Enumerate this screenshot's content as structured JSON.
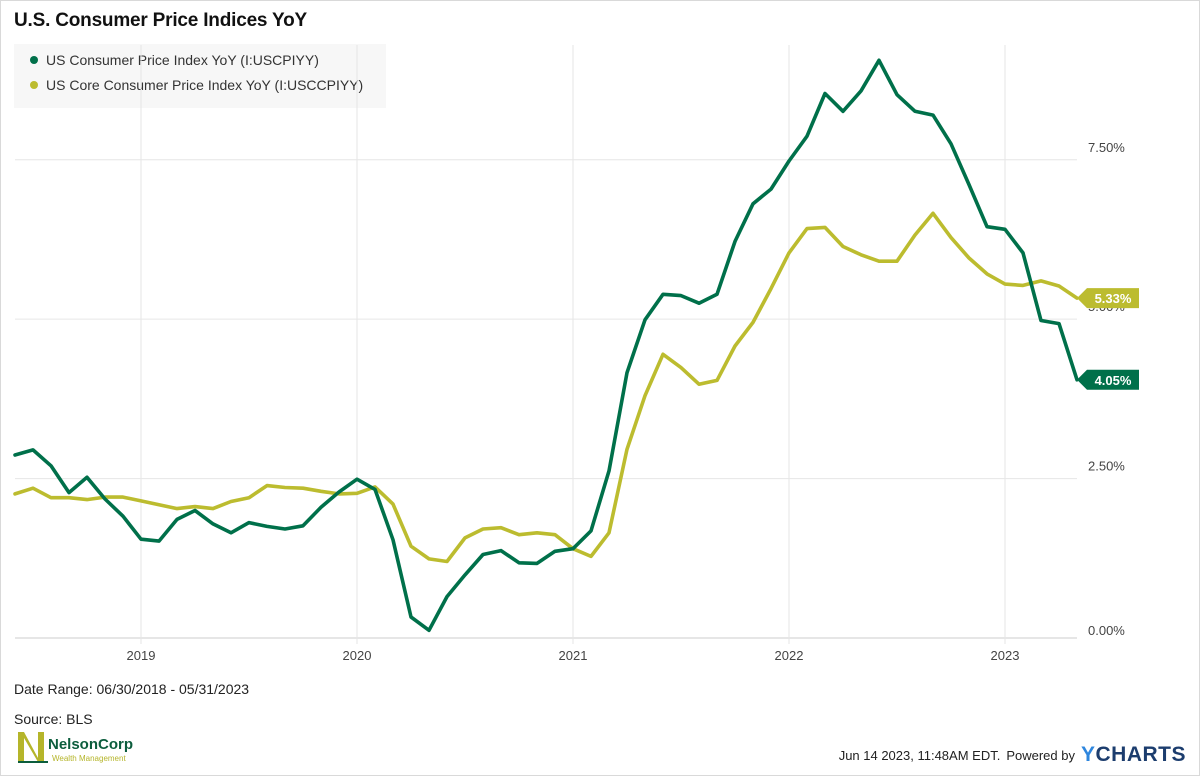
{
  "title": "U.S. Consumer Price Indices YoY",
  "legend": [
    {
      "label": "US Consumer Price Index YoY (I:USCPIYY)",
      "color": "#00704a"
    },
    {
      "label": "US Core Consumer Price Index YoY (I:USCCPIYY)",
      "color": "#bcbc2f"
    }
  ],
  "footer": {
    "date_range": "Date Range: 06/30/2018 - 05/31/2023",
    "source": "Source: BLS",
    "timestamp": "Jun 14 2023, 11:48AM EDT.",
    "powered_by": "Powered by",
    "brand_y": "Y",
    "brand_rest": "CHARTS"
  },
  "logo": {
    "name": "NelsonCorp",
    "tagline": "Wealth Management"
  },
  "chart_data": {
    "type": "line",
    "title": "U.S. Consumer Price Indices YoY",
    "x_axis": {
      "ticks": [
        "2019",
        "2020",
        "2021",
        "2022",
        "2023"
      ],
      "range": [
        "2018-06",
        "2023-05"
      ]
    },
    "y_axis": {
      "ticks": [
        "0.00%",
        "2.50%",
        "5.00%",
        "7.50%"
      ],
      "range": [
        0,
        9.3
      ],
      "position": "right"
    },
    "grid": true,
    "legend_position": "top-left",
    "x": [
      "2018-06",
      "2018-07",
      "2018-08",
      "2018-09",
      "2018-10",
      "2018-11",
      "2018-12",
      "2019-01",
      "2019-02",
      "2019-03",
      "2019-04",
      "2019-05",
      "2019-06",
      "2019-07",
      "2019-08",
      "2019-09",
      "2019-10",
      "2019-11",
      "2019-12",
      "2020-01",
      "2020-02",
      "2020-03",
      "2020-04",
      "2020-05",
      "2020-06",
      "2020-07",
      "2020-08",
      "2020-09",
      "2020-10",
      "2020-11",
      "2020-12",
      "2021-01",
      "2021-02",
      "2021-03",
      "2021-04",
      "2021-05",
      "2021-06",
      "2021-07",
      "2021-08",
      "2021-09",
      "2021-10",
      "2021-11",
      "2021-12",
      "2022-01",
      "2022-02",
      "2022-03",
      "2022-04",
      "2022-05",
      "2022-06",
      "2022-07",
      "2022-08",
      "2022-09",
      "2022-10",
      "2022-11",
      "2022-12",
      "2023-01",
      "2023-02",
      "2023-03",
      "2023-04",
      "2023-05"
    ],
    "series": [
      {
        "name": "US Consumer Price Index YoY (I:USCPIYY)",
        "color": "#00704a",
        "last_label": "4.05%",
        "values": [
          2.87,
          2.95,
          2.7,
          2.28,
          2.52,
          2.18,
          1.91,
          1.55,
          1.52,
          1.86,
          2.0,
          1.79,
          1.65,
          1.81,
          1.75,
          1.71,
          1.76,
          2.05,
          2.29,
          2.49,
          2.33,
          1.54,
          0.33,
          0.12,
          0.65,
          0.99,
          1.31,
          1.37,
          1.18,
          1.17,
          1.36,
          1.4,
          1.68,
          2.62,
          4.16,
          4.99,
          5.39,
          5.37,
          5.25,
          5.39,
          6.22,
          6.81,
          7.04,
          7.48,
          7.87,
          8.54,
          8.26,
          8.58,
          9.06,
          8.52,
          8.26,
          8.2,
          7.75,
          7.11,
          6.45,
          6.41,
          6.04,
          4.98,
          4.93,
          4.05
        ]
      },
      {
        "name": "US Core Consumer Price Index YoY (I:USCCPIYY)",
        "color": "#bcbc2f",
        "last_label": "5.33%",
        "values": [
          2.26,
          2.35,
          2.2,
          2.2,
          2.17,
          2.21,
          2.21,
          2.15,
          2.09,
          2.03,
          2.06,
          2.03,
          2.14,
          2.2,
          2.39,
          2.36,
          2.35,
          2.3,
          2.26,
          2.27,
          2.37,
          2.1,
          1.44,
          1.24,
          1.2,
          1.57,
          1.71,
          1.73,
          1.62,
          1.65,
          1.62,
          1.4,
          1.28,
          1.65,
          2.96,
          3.8,
          4.45,
          4.24,
          3.98,
          4.04,
          4.58,
          4.95,
          5.48,
          6.04,
          6.42,
          6.44,
          6.14,
          6.01,
          5.91,
          5.91,
          6.32,
          6.66,
          6.28,
          5.96,
          5.71,
          5.55,
          5.53,
          5.6,
          5.52,
          5.33
        ]
      }
    ]
  }
}
